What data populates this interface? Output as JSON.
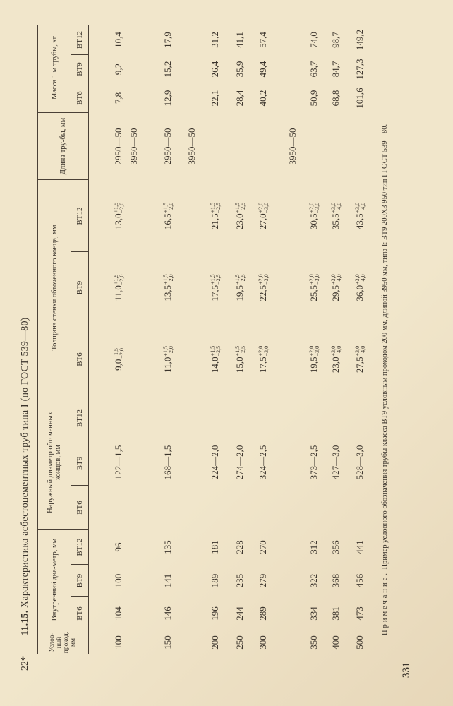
{
  "folio": "22*",
  "page_number": "331",
  "title": {
    "number": "11.15.",
    "text": "Характеристика асбестоцементных труб типа I (по ГОСТ 539—80)"
  },
  "header": {
    "nominal_bore": "Услов-ный проход, мм",
    "inner_diameter": "Внутренний диа-метр, мм",
    "outer_diameter": "Наружный диаметр обточенных концов, мм",
    "wall_thickness": "Толщина стенки обточенного конца, мм",
    "length": "Длина тру-бы, мм",
    "mass": "Масса 1 м трубы, кг",
    "classes": [
      "ВТ6",
      "ВТ9",
      "ВТ12"
    ]
  },
  "rows": [
    {
      "bore": "100",
      "inner": [
        "104",
        "100",
        "96"
      ],
      "outer": "122—1,5",
      "thickness": [
        [
          "9,0",
          "+1,5",
          "−2,0"
        ],
        [
          "11,0",
          "+1,5",
          "−2,0"
        ],
        [
          "13,0",
          "+1,5",
          "−2,0"
        ]
      ],
      "mass": [
        "7,8",
        "9,2",
        "10,4"
      ]
    },
    {
      "bore": "150",
      "inner": [
        "146",
        "141",
        "135"
      ],
      "outer": "168—1,5",
      "thickness": [
        [
          "11,0",
          "+1,5",
          "−2,0"
        ],
        [
          "13,5",
          "+1,5",
          "−2,0"
        ],
        [
          "16,5",
          "+1,5",
          "−2,0"
        ]
      ],
      "mass": [
        "12,9",
        "15,2",
        "17,9"
      ]
    },
    {
      "bore": "200",
      "inner": [
        "196",
        "189",
        "181"
      ],
      "outer": "224—2,0",
      "thickness": [
        [
          "14,0",
          "+1,5",
          "−2,5"
        ],
        [
          "17,5",
          "+1,5",
          "−2,5"
        ],
        [
          "21,5",
          "+1,5",
          "−2,5"
        ]
      ],
      "mass": [
        "22,1",
        "26,4",
        "31,2"
      ]
    },
    {
      "bore": "250",
      "inner": [
        "244",
        "235",
        "228"
      ],
      "outer": "274—2,0",
      "thickness": [
        [
          "15,0",
          "+1,5",
          "−2,5"
        ],
        [
          "19,5",
          "+1,5",
          "−2,5"
        ],
        [
          "23,0",
          "+1,5",
          "−2,5"
        ]
      ],
      "mass": [
        "28,4",
        "35,9",
        "41,1"
      ]
    },
    {
      "bore": "300",
      "inner": [
        "289",
        "279",
        "270"
      ],
      "outer": "324—2,5",
      "thickness": [
        [
          "17,5",
          "+2,0",
          "−3,0"
        ],
        [
          "22,5",
          "+2,0",
          "−3,0"
        ],
        [
          "27,0",
          "+2,0",
          "−3,0"
        ]
      ],
      "mass": [
        "40,2",
        "49,4",
        "57,4"
      ]
    },
    {
      "bore": "350",
      "inner": [
        "334",
        "322",
        "312"
      ],
      "outer": "373—2,5",
      "thickness": [
        [
          "19,5",
          "+2,0",
          "−3,0"
        ],
        [
          "25,5",
          "+2,0",
          "−3,0"
        ],
        [
          "30,5",
          "+2,0",
          "−3,0"
        ]
      ],
      "mass": [
        "50,9",
        "63,7",
        "74,0"
      ]
    },
    {
      "bore": "400",
      "inner": [
        "381",
        "368",
        "356"
      ],
      "outer": "427—3,0",
      "thickness": [
        [
          "23,0",
          "+3,0",
          "−4,0"
        ],
        [
          "29,5",
          "+3,0",
          "−4,0"
        ],
        [
          "35,5",
          "+3,0",
          "−4,0"
        ]
      ],
      "mass": [
        "68,8",
        "84,7",
        "98,7"
      ]
    },
    {
      "bore": "500",
      "inner": [
        "473",
        "456",
        "441"
      ],
      "outer": "528—3,0",
      "thickness": [
        [
          "27,5",
          "+3,0",
          "−4,0"
        ],
        [
          "36,0",
          "+3,0",
          "−4,0"
        ],
        [
          "43,5",
          "+3,0",
          "−4,0"
        ]
      ],
      "mass": [
        "101,6",
        "127,3",
        "149,2"
      ]
    }
  ],
  "lengths": [
    "2950—50",
    "3950—50",
    "2950—50",
    "3950—50",
    "3950—50"
  ],
  "note": {
    "label": "Примечание.",
    "text": "Пример условного обозначения трубы класса ВТ9 условным проходом 200 мм, длиной 3950 мм, типа I: ВТ9 200Х3 950 тип I ГОСТ 539—80."
  },
  "colors": {
    "paper": "#f1e6cb",
    "ink": "#3b342c"
  }
}
